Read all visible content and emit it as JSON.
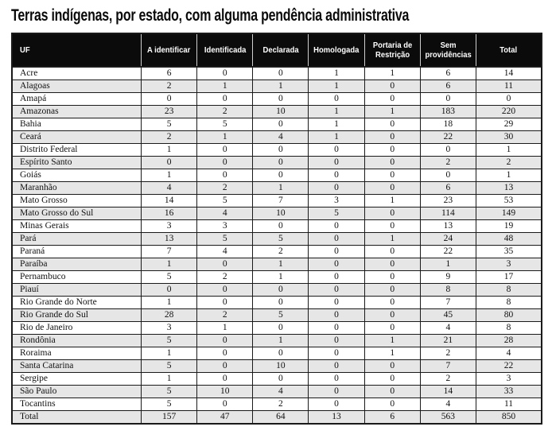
{
  "title": "Terras indígenas, por estado, com alguma pendência administrativa",
  "colors": {
    "header_bg": "#0b0b0b",
    "stripe_bg": "#e6e6e6",
    "border": "#1a1a1a",
    "header_text": "#ffffff"
  },
  "table": {
    "columns": [
      "UF",
      "A identificar",
      "Identificada",
      "Declarada",
      "Homologada",
      "Portaria de Restrição",
      "Sem providências",
      "Total"
    ],
    "rows": [
      [
        "Acre",
        6,
        0,
        0,
        1,
        1,
        6,
        14
      ],
      [
        "Alagoas",
        2,
        1,
        1,
        1,
        0,
        6,
        11
      ],
      [
        "Amapá",
        0,
        0,
        0,
        0,
        0,
        0,
        0
      ],
      [
        "Amazonas",
        23,
        2,
        10,
        1,
        1,
        183,
        220
      ],
      [
        "Bahia",
        5,
        5,
        0,
        1,
        0,
        18,
        29
      ],
      [
        "Ceará",
        2,
        1,
        4,
        1,
        0,
        22,
        30
      ],
      [
        "Distrito Federal",
        1,
        0,
        0,
        0,
        0,
        0,
        1
      ],
      [
        "Espírito Santo",
        0,
        0,
        0,
        0,
        0,
        2,
        2
      ],
      [
        "Goiás",
        1,
        0,
        0,
        0,
        0,
        0,
        1
      ],
      [
        "Maranhão",
        4,
        2,
        1,
        0,
        0,
        6,
        13
      ],
      [
        "Mato Grosso",
        14,
        5,
        7,
        3,
        1,
        23,
        53
      ],
      [
        "Mato Grosso do Sul",
        16,
        4,
        10,
        5,
        0,
        114,
        149
      ],
      [
        "Minas Gerais",
        3,
        3,
        0,
        0,
        0,
        13,
        19
      ],
      [
        "Pará",
        13,
        5,
        5,
        0,
        1,
        24,
        48
      ],
      [
        "Paraná",
        7,
        4,
        2,
        0,
        0,
        22,
        35
      ],
      [
        "Paraíba",
        1,
        0,
        1,
        0,
        0,
        1,
        3
      ],
      [
        "Pernambuco",
        5,
        2,
        1,
        0,
        0,
        9,
        17
      ],
      [
        "Piauí",
        0,
        0,
        0,
        0,
        0,
        8,
        8
      ],
      [
        "Rio Grande do Norte",
        1,
        0,
        0,
        0,
        0,
        7,
        8
      ],
      [
        "Rio Grande do Sul",
        28,
        2,
        5,
        0,
        0,
        45,
        80
      ],
      [
        "Rio de Janeiro",
        3,
        1,
        0,
        0,
        0,
        4,
        8
      ],
      [
        "Rondônia",
        5,
        0,
        1,
        0,
        1,
        21,
        28
      ],
      [
        "Roraima",
        1,
        0,
        0,
        0,
        1,
        2,
        4
      ],
      [
        "Santa Catarina",
        5,
        0,
        10,
        0,
        0,
        7,
        22
      ],
      [
        "Sergipe",
        1,
        0,
        0,
        0,
        0,
        2,
        3
      ],
      [
        "São Paulo",
        5,
        10,
        4,
        0,
        0,
        14,
        33
      ],
      [
        "Tocantins",
        5,
        0,
        2,
        0,
        0,
        4,
        11
      ],
      [
        "Total",
        157,
        47,
        64,
        13,
        6,
        563,
        850
      ]
    ]
  }
}
